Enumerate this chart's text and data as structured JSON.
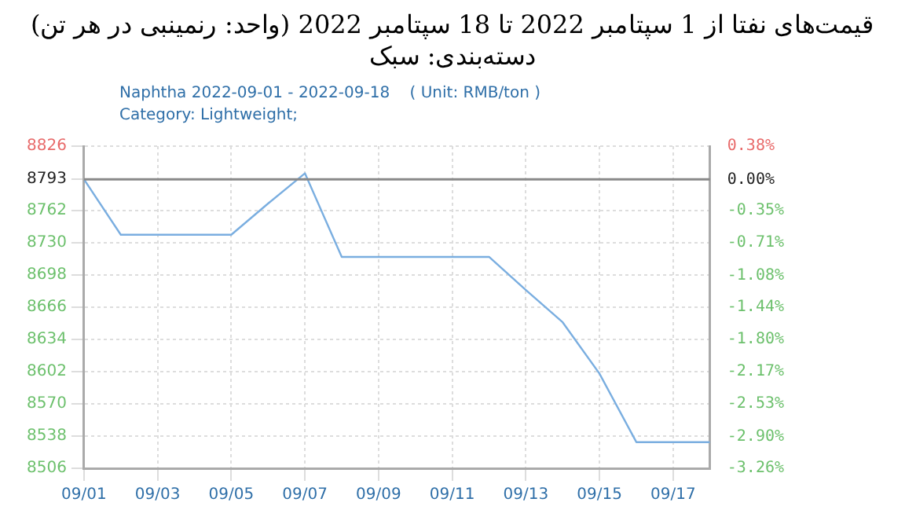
{
  "chart_data": {
    "type": "line",
    "title": "قیمت‌های نفتا از 1 سپتامبر 2022 تا 18 سپتامبر 2022 (واحد: رنمینبی در هر تن)\nدسته‌بندی: سبک",
    "subtitle": "Naphtha 2022-09-01 - 2022-09-18    ( Unit: RMB/ton )",
    "annotations": [
      "Category: Lightweight;"
    ],
    "x": [
      "2022-09-01",
      "2022-09-02",
      "2022-09-03",
      "2022-09-04",
      "2022-09-05",
      "2022-09-06",
      "2022-09-07",
      "2022-09-08",
      "2022-09-09",
      "2022-09-10",
      "2022-09-11",
      "2022-09-12",
      "2022-09-13",
      "2022-09-14",
      "2022-09-15",
      "2022-09-16",
      "2022-09-17",
      "2022-09-18"
    ],
    "series": [
      {
        "color": "#7aaee0",
        "values": [
          8793,
          8738,
          8738,
          8738,
          8738,
          8769,
          8799,
          8716,
          8716,
          8716,
          8716,
          8716,
          8683,
          8651,
          8600,
          8532,
          8532,
          8532
        ]
      }
    ],
    "xlim": [
      "2022-09-01",
      "2022-09-18"
    ],
    "xticks": [
      {
        "value": "2022-09-01",
        "label": "09/01"
      },
      {
        "value": "2022-09-03",
        "label": "09/03"
      },
      {
        "value": "2022-09-05",
        "label": "09/05"
      },
      {
        "value": "2022-09-07",
        "label": "09/07"
      },
      {
        "value": "2022-09-09",
        "label": "09/09"
      },
      {
        "value": "2022-09-11",
        "label": "09/11"
      },
      {
        "value": "2022-09-13",
        "label": "09/13"
      },
      {
        "value": "2022-09-15",
        "label": "09/15"
      },
      {
        "value": "2022-09-17",
        "label": "09/17"
      }
    ],
    "ylim": [
      8506,
      8826
    ],
    "yticks": [
      8506,
      8538,
      8570,
      8602,
      8634,
      8666,
      8698,
      8730,
      8762,
      8793,
      8826
    ],
    "y2lim": [
      -3.26,
      0.38
    ],
    "y2ticks": [
      {
        "value": -3.26,
        "label": "-3.26%"
      },
      {
        "value": -2.9,
        "label": "-2.90%"
      },
      {
        "value": -2.53,
        "label": "-2.53%"
      },
      {
        "value": -2.17,
        "label": "-2.17%"
      },
      {
        "value": -1.8,
        "label": "-1.80%"
      },
      {
        "value": -1.44,
        "label": "-1.44%"
      },
      {
        "value": -1.08,
        "label": "-1.08%"
      },
      {
        "value": -0.71,
        "label": "-0.71%"
      },
      {
        "value": -0.35,
        "label": "-0.35%"
      },
      {
        "value": 0,
        "label": "0.00%"
      },
      {
        "value": 0.38,
        "label": "0.38%"
      }
    ],
    "ref_lines": [
      {
        "axis": "y",
        "value": 8793,
        "color": "#888888"
      }
    ],
    "grid": true,
    "marker": "none",
    "line_style": "solid"
  }
}
